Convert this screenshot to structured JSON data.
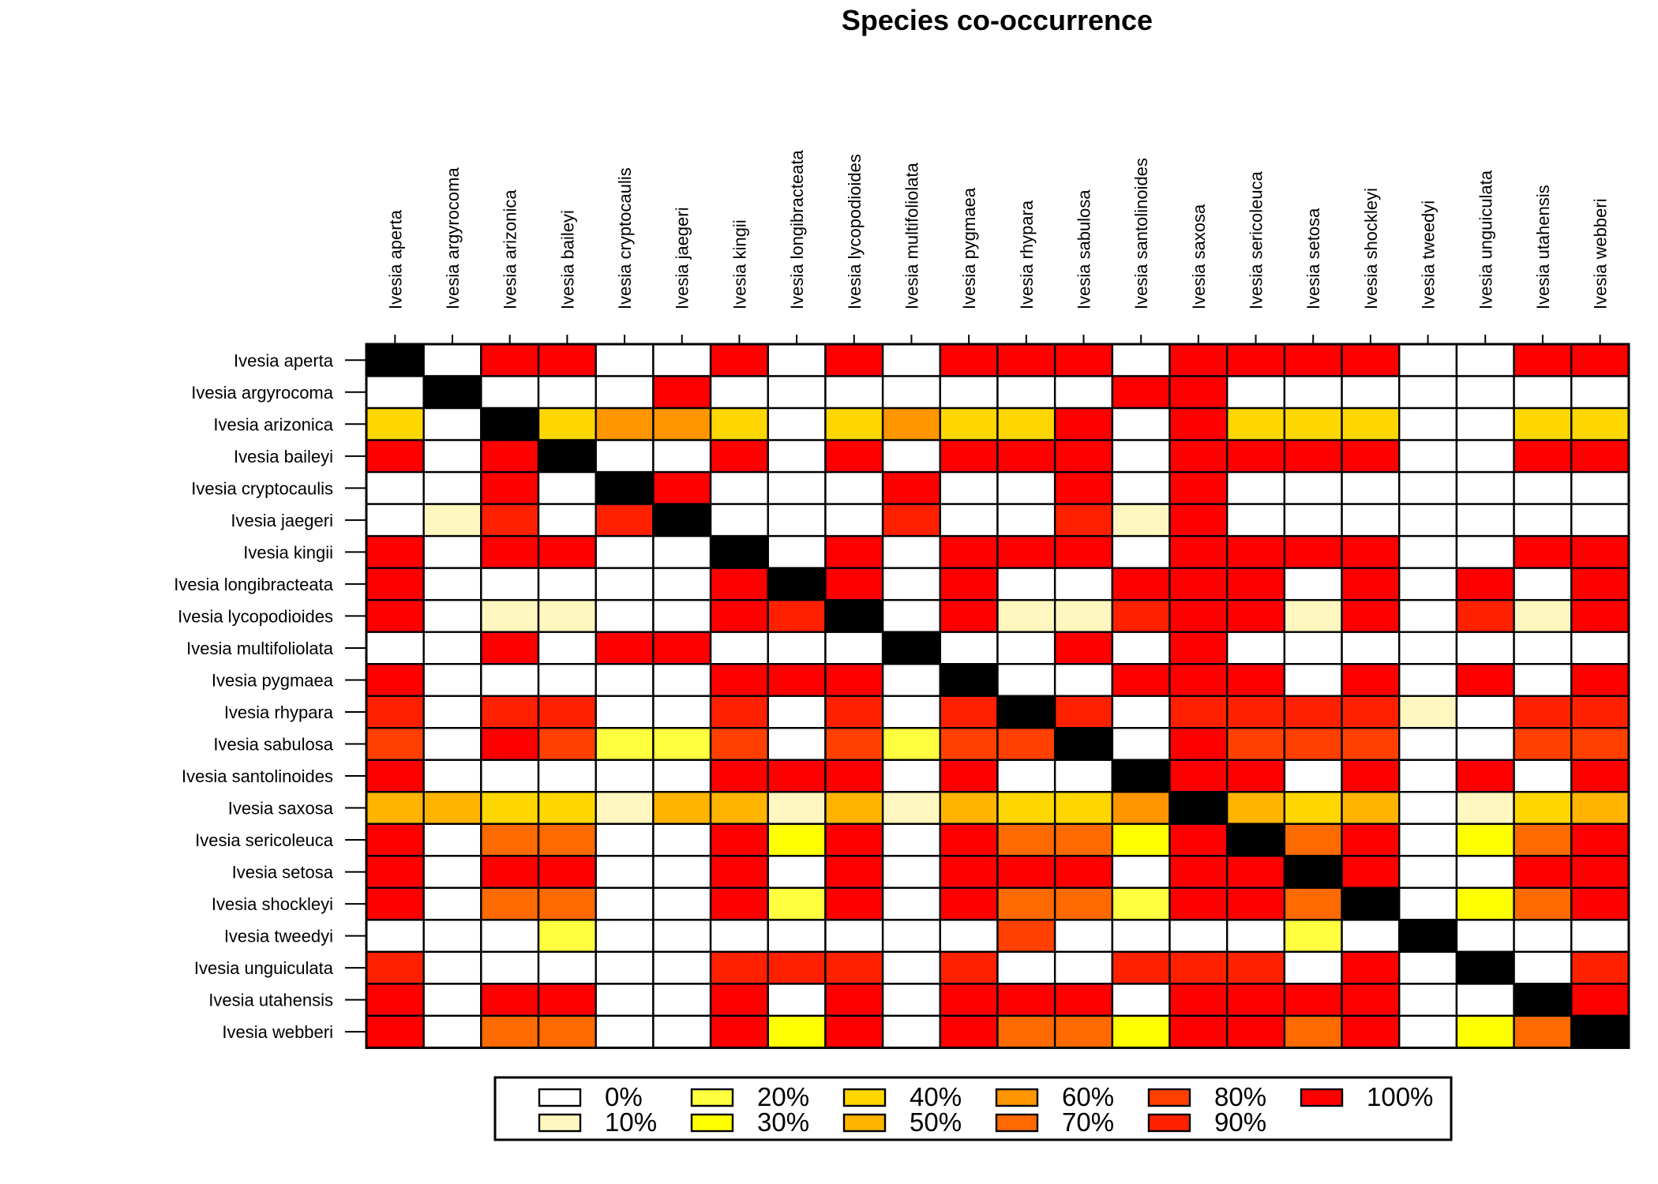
{
  "chart_data": {
    "type": "heatmap",
    "title": "Species co-occurrence",
    "xlabel": "",
    "ylabel": "",
    "grid": true,
    "legend_position": "bottom",
    "species": [
      "Ivesia aperta",
      "Ivesia argyrocoma",
      "Ivesia arizonica",
      "Ivesia baileyi",
      "Ivesia cryptocaulis",
      "Ivesia jaegeri",
      "Ivesia kingii",
      "Ivesia longibracteata",
      "Ivesia lycopodioides",
      "Ivesia multifoliolata",
      "Ivesia pygmaea",
      "Ivesia rhypara",
      "Ivesia sabulosa",
      "Ivesia santolinoides",
      "Ivesia saxosa",
      "Ivesia sericoleuca",
      "Ivesia setosa",
      "Ivesia shockleyi",
      "Ivesia tweedyi",
      "Ivesia unguiculata",
      "Ivesia utahensis",
      "Ivesia webberi"
    ],
    "legend": [
      {
        "label": "0%",
        "value": 0,
        "color": "#ffffff"
      },
      {
        "label": "10%",
        "value": 10,
        "color": "#fff7bf"
      },
      {
        "label": "20%",
        "value": 20,
        "color": "#ffff40"
      },
      {
        "label": "30%",
        "value": 30,
        "color": "#ffff00"
      },
      {
        "label": "40%",
        "value": 40,
        "color": "#ffd700"
      },
      {
        "label": "50%",
        "value": 50,
        "color": "#ffb400"
      },
      {
        "label": "60%",
        "value": 60,
        "color": "#ff9600"
      },
      {
        "label": "70%",
        "value": 70,
        "color": "#ff6a00"
      },
      {
        "label": "80%",
        "value": 80,
        "color": "#ff4000"
      },
      {
        "label": "90%",
        "value": 90,
        "color": "#ff2000"
      },
      {
        "label": "100%",
        "value": 100,
        "color": "#ff0000"
      }
    ],
    "diagonal_color": "#000000",
    "values": [
      [
        -1,
        0,
        100,
        100,
        0,
        0,
        100,
        0,
        100,
        0,
        100,
        100,
        100,
        0,
        100,
        100,
        100,
        100,
        0,
        0,
        100,
        100
      ],
      [
        0,
        -1,
        0,
        0,
        0,
        100,
        0,
        0,
        0,
        0,
        0,
        0,
        0,
        100,
        100,
        0,
        0,
        0,
        0,
        0,
        0,
        0
      ],
      [
        40,
        0,
        -1,
        40,
        60,
        60,
        40,
        0,
        40,
        60,
        40,
        40,
        100,
        0,
        100,
        40,
        40,
        40,
        0,
        0,
        40,
        40
      ],
      [
        100,
        0,
        100,
        -1,
        0,
        0,
        100,
        0,
        100,
        0,
        100,
        100,
        100,
        0,
        100,
        100,
        100,
        100,
        0,
        0,
        100,
        100
      ],
      [
        0,
        0,
        100,
        0,
        -1,
        100,
        0,
        0,
        0,
        100,
        0,
        0,
        100,
        0,
        100,
        0,
        0,
        0,
        0,
        0,
        0,
        0
      ],
      [
        0,
        10,
        90,
        0,
        90,
        -1,
        0,
        0,
        0,
        90,
        0,
        0,
        90,
        10,
        100,
        0,
        0,
        0,
        0,
        0,
        0,
        0
      ],
      [
        100,
        0,
        100,
        100,
        0,
        0,
        -1,
        0,
        100,
        0,
        100,
        100,
        100,
        0,
        100,
        100,
        100,
        100,
        0,
        0,
        100,
        100
      ],
      [
        100,
        0,
        0,
        0,
        0,
        0,
        100,
        -1,
        100,
        0,
        100,
        0,
        0,
        100,
        100,
        100,
        0,
        100,
        0,
        100,
        0,
        100
      ],
      [
        100,
        0,
        10,
        10,
        0,
        0,
        100,
        90,
        -1,
        0,
        100,
        10,
        10,
        90,
        100,
        100,
        10,
        100,
        0,
        90,
        10,
        100
      ],
      [
        0,
        0,
        100,
        0,
        100,
        100,
        0,
        0,
        0,
        -1,
        0,
        0,
        100,
        0,
        100,
        0,
        0,
        0,
        0,
        0,
        0,
        0
      ],
      [
        100,
        0,
        0,
        0,
        0,
        0,
        100,
        100,
        100,
        0,
        -1,
        0,
        0,
        100,
        100,
        100,
        0,
        100,
        0,
        100,
        0,
        100
      ],
      [
        90,
        0,
        90,
        90,
        0,
        0,
        90,
        0,
        90,
        0,
        90,
        -1,
        90,
        0,
        90,
        90,
        90,
        90,
        10,
        0,
        90,
        90
      ],
      [
        80,
        0,
        100,
        80,
        20,
        20,
        80,
        0,
        80,
        20,
        80,
        80,
        -1,
        0,
        100,
        80,
        80,
        80,
        0,
        0,
        80,
        80
      ],
      [
        100,
        0,
        0,
        0,
        0,
        0,
        100,
        100,
        100,
        0,
        100,
        0,
        0,
        -1,
        100,
        100,
        0,
        100,
        0,
        100,
        0,
        100
      ],
      [
        50,
        50,
        40,
        40,
        10,
        50,
        50,
        10,
        50,
        10,
        50,
        40,
        40,
        60,
        -1,
        50,
        40,
        50,
        0,
        10,
        40,
        50
      ],
      [
        100,
        0,
        70,
        70,
        0,
        0,
        100,
        30,
        100,
        0,
        100,
        70,
        70,
        30,
        100,
        -1,
        70,
        100,
        0,
        30,
        70,
        100
      ],
      [
        100,
        0,
        100,
        100,
        0,
        0,
        100,
        0,
        100,
        0,
        100,
        100,
        100,
        0,
        100,
        100,
        -1,
        100,
        0,
        0,
        100,
        100
      ],
      [
        100,
        0,
        70,
        70,
        0,
        0,
        100,
        20,
        100,
        0,
        100,
        70,
        70,
        20,
        100,
        100,
        70,
        -1,
        0,
        30,
        70,
        100
      ],
      [
        0,
        0,
        0,
        20,
        0,
        0,
        0,
        0,
        0,
        0,
        0,
        80,
        0,
        0,
        0,
        0,
        20,
        0,
        -1,
        0,
        0,
        0
      ],
      [
        90,
        0,
        0,
        0,
        0,
        0,
        90,
        90,
        90,
        0,
        90,
        0,
        0,
        90,
        90,
        90,
        0,
        100,
        0,
        -1,
        0,
        90
      ],
      [
        100,
        0,
        100,
        100,
        0,
        0,
        100,
        0,
        100,
        0,
        100,
        100,
        100,
        0,
        100,
        100,
        100,
        100,
        0,
        0,
        -1,
        100
      ],
      [
        100,
        0,
        70,
        70,
        0,
        0,
        100,
        30,
        100,
        0,
        100,
        70,
        70,
        30,
        100,
        100,
        70,
        100,
        0,
        30,
        70,
        -1
      ]
    ]
  }
}
